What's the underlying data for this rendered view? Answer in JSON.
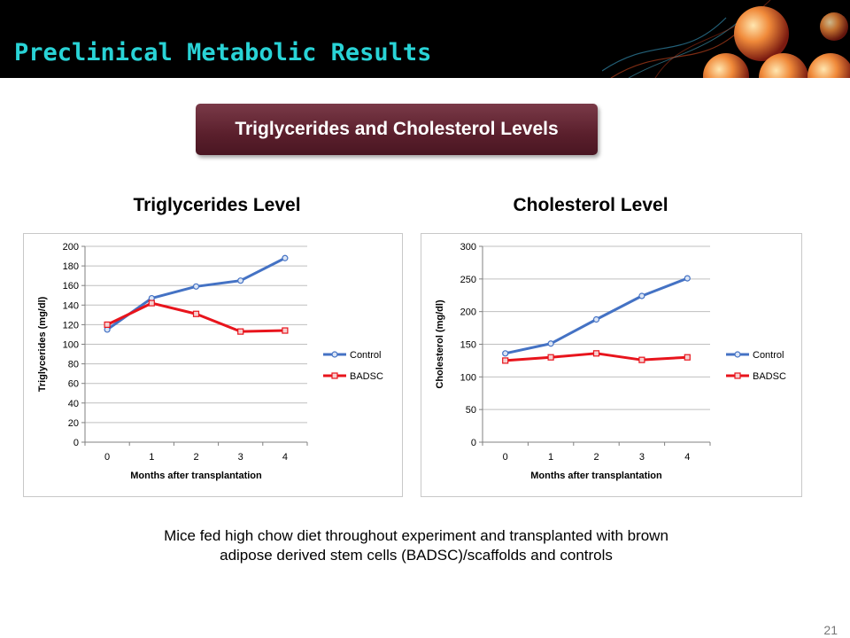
{
  "header": {
    "title": "Preclinical Metabolic Results"
  },
  "banner": {
    "label": "Triglycerides and Cholesterol Levels"
  },
  "caption": {
    "line1": "Mice fed high chow diet throughout experiment and transplanted with brown",
    "line2": "adipose derived stem cells (BADSC)/scaffolds and controls"
  },
  "page_number": "21",
  "colors": {
    "control": "#4472c4",
    "badsc": "#e8141c",
    "header_title": "#29d3d6",
    "banner": "#5a1f2c"
  },
  "chart_data": [
    {
      "type": "line",
      "title": "Triglycerides Level",
      "xlabel": "Months after transplantation",
      "ylabel": "Triglycerides (mg/dl)",
      "categories": [
        "0",
        "1",
        "2",
        "3",
        "4"
      ],
      "ylim": [
        0,
        200
      ],
      "yticks": [
        0,
        20,
        40,
        60,
        80,
        100,
        120,
        140,
        160,
        180,
        200
      ],
      "grid": true,
      "legend": "right",
      "series": [
        {
          "name": "Control",
          "marker": "circle",
          "values": [
            115,
            147,
            159,
            165,
            188
          ]
        },
        {
          "name": "BADSC",
          "marker": "square",
          "values": [
            120,
            142,
            131,
            113,
            114
          ]
        }
      ]
    },
    {
      "type": "line",
      "title": "Cholesterol Level",
      "xlabel": "Months after transplantation",
      "ylabel": "Cholesterol (mg/dl)",
      "categories": [
        "0",
        "1",
        "2",
        "3",
        "4"
      ],
      "ylim": [
        0,
        300
      ],
      "yticks": [
        0,
        50,
        100,
        150,
        200,
        250,
        300
      ],
      "grid": true,
      "legend": "right",
      "series": [
        {
          "name": "Control",
          "marker": "circle",
          "values": [
            136,
            151,
            188,
            224,
            251
          ]
        },
        {
          "name": "BADSC",
          "marker": "square",
          "values": [
            125,
            130,
            136,
            126,
            130
          ]
        }
      ]
    }
  ]
}
